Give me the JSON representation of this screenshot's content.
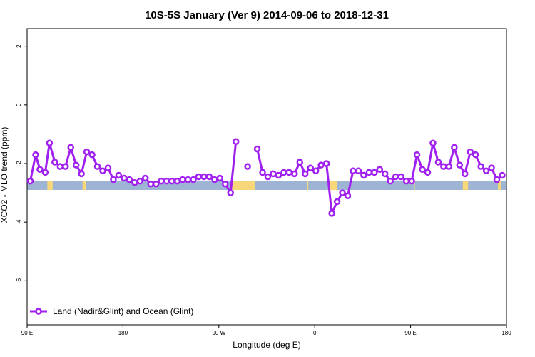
{
  "chart_data": {
    "type": "line",
    "title": "10S-5S January (Ver 9)   2014-09-06 to 2018-12-31",
    "xlabel": "Longitude (deg E)",
    "ylabel": "XCO2 - MLO trend (ppm)",
    "xlim": [
      90,
      540
    ],
    "ylim": [
      -7.5,
      2.6
    ],
    "x_ticks": [
      {
        "value": 90,
        "label": "90 E"
      },
      {
        "value": 180,
        "label": "180"
      },
      {
        "value": 270,
        "label": "90 W"
      },
      {
        "value": 360,
        "label": "0"
      },
      {
        "value": 450,
        "label": "90 E"
      },
      {
        "value": 540,
        "label": "180"
      }
    ],
    "y_ticks": [
      {
        "value": 2,
        "label": "2"
      },
      {
        "value": 0,
        "label": "0"
      },
      {
        "value": -2,
        "label": "-2"
      },
      {
        "value": -4,
        "label": "-4"
      },
      {
        "value": -6,
        "label": "-6"
      }
    ],
    "legend": {
      "position": "bottom-left",
      "label": "Land (Nadir&Glint) and Ocean (Glint)"
    },
    "grid": false,
    "series_color": "#a020f0",
    "band": {
      "y_top": -2.6,
      "y_bottom": -2.9,
      "ocean_color": "#9db4d4",
      "land_color": "#f7d77a"
    },
    "land_spans": [
      [
        109,
        114
      ],
      [
        142,
        145
      ],
      [
        282,
        304
      ],
      [
        353,
        354
      ],
      [
        374,
        381
      ],
      [
        453,
        454
      ],
      [
        499,
        504
      ],
      [
        532,
        535
      ]
    ],
    "series": [
      {
        "values": [
          [
            93,
            -2.6
          ],
          [
            98,
            -1.7
          ],
          [
            102,
            -2.2
          ],
          [
            107,
            -2.3
          ],
          [
            111,
            -1.3
          ],
          [
            116,
            -1.95
          ],
          [
            121,
            -2.1
          ],
          [
            126,
            -2.1
          ],
          [
            131,
            -1.45
          ],
          [
            136,
            -2.05
          ],
          [
            141,
            -2.35
          ],
          [
            146,
            -1.6
          ],
          [
            151,
            -1.7
          ],
          [
            156,
            -2.1
          ],
          [
            161,
            -2.25
          ],
          [
            166,
            -2.15
          ],
          [
            171,
            -2.55
          ],
          [
            176,
            -2.4
          ],
          [
            181,
            -2.5
          ],
          [
            186,
            -2.55
          ],
          [
            191,
            -2.65
          ],
          [
            196,
            -2.6
          ],
          [
            201,
            -2.5
          ],
          [
            206,
            -2.7
          ],
          [
            211,
            -2.7
          ],
          [
            216,
            -2.6
          ],
          [
            221,
            -2.6
          ],
          [
            226,
            -2.6
          ],
          [
            231,
            -2.6
          ],
          [
            236,
            -2.55
          ],
          [
            241,
            -2.55
          ],
          [
            246,
            -2.55
          ],
          [
            251,
            -2.45
          ],
          [
            256,
            -2.45
          ],
          [
            261,
            -2.45
          ],
          [
            266,
            -2.55
          ],
          [
            271,
            -2.5
          ],
          [
            276,
            -2.7
          ],
          [
            281,
            -3.0
          ],
          [
            286,
            -1.25
          ],
          null,
          [
            297,
            -2.1
          ],
          null,
          [
            306,
            -1.5
          ],
          [
            311,
            -2.3
          ],
          [
            316,
            -2.45
          ],
          [
            321,
            -2.35
          ],
          [
            326,
            -2.4
          ],
          [
            331,
            -2.3
          ],
          [
            336,
            -2.3
          ],
          [
            341,
            -2.35
          ],
          [
            346,
            -1.95
          ],
          [
            351,
            -2.35
          ],
          [
            356,
            -2.15
          ],
          [
            361,
            -2.25
          ],
          [
            366,
            -2.05
          ],
          [
            371,
            -2.0
          ],
          [
            376,
            -3.7
          ],
          [
            381,
            -3.3
          ],
          [
            386,
            -3.0
          ],
          [
            391,
            -3.1
          ],
          [
            396,
            -2.25
          ],
          [
            401,
            -2.25
          ],
          [
            406,
            -2.4
          ],
          [
            411,
            -2.3
          ],
          [
            416,
            -2.3
          ],
          [
            421,
            -2.2
          ],
          [
            426,
            -2.35
          ],
          [
            431,
            -2.6
          ],
          [
            436,
            -2.45
          ],
          [
            441,
            -2.45
          ],
          [
            446,
            -2.6
          ],
          [
            451,
            -2.6
          ],
          [
            456,
            -1.7
          ],
          [
            461,
            -2.2
          ],
          [
            466,
            -2.3
          ],
          [
            471,
            -1.3
          ],
          [
            476,
            -1.95
          ],
          [
            481,
            -2.1
          ],
          [
            486,
            -2.1
          ],
          [
            491,
            -1.45
          ],
          [
            496,
            -2.05
          ],
          [
            501,
            -2.35
          ],
          [
            506,
            -1.6
          ],
          [
            511,
            -1.7
          ],
          [
            516,
            -2.1
          ],
          [
            521,
            -2.25
          ],
          [
            526,
            -2.15
          ],
          [
            531,
            -2.55
          ],
          [
            536,
            -2.4
          ]
        ]
      }
    ]
  }
}
